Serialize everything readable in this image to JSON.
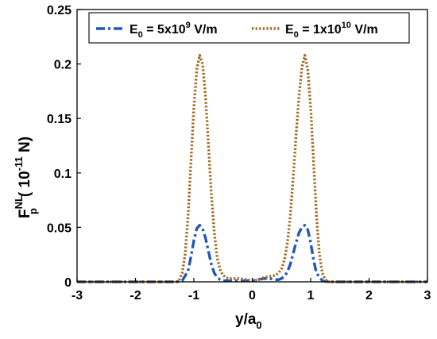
{
  "chart_data": {
    "type": "line",
    "xlabel": {
      "base": "y/a",
      "sub": "0"
    },
    "ylabel": {
      "base": "F",
      "sub": "p",
      "sup": "NL",
      "rest": "( 10",
      "exp": "-11",
      "unit": " N)"
    },
    "xlim": [
      -3,
      3
    ],
    "ylim": [
      0,
      0.25
    ],
    "xticks": [
      -3,
      -2,
      -1,
      0,
      1,
      2,
      3
    ],
    "yticks": [
      0,
      0.05,
      0.1,
      0.15,
      0.2,
      0.25
    ],
    "xtick_labels": [
      "-3",
      "-2",
      "-1",
      "0",
      "1",
      "2",
      "3"
    ],
    "ytick_labels": [
      "0",
      "0.05",
      "0.1",
      "0.15",
      "0.2",
      "0.25"
    ],
    "grid": false,
    "legend_position": "top",
    "series": [
      {
        "legend": {
          "base": "E",
          "sub": "0",
          "mid": " = 5x10",
          "sup": "9",
          "unit": " V/m"
        },
        "color": "#2356b8",
        "style": "dashdot",
        "x": [
          -3,
          -1.3,
          -1.2,
          -1.1,
          -1.05,
          -1.0,
          -0.95,
          -0.9,
          -0.85,
          -0.8,
          -0.75,
          -0.7,
          -0.65,
          -0.6,
          -0.55,
          -0.5,
          -0.45,
          -0.4,
          -0.3,
          -0.2,
          -0.1,
          0,
          0.1,
          0.2,
          0.3,
          0.4,
          0.45,
          0.5,
          0.55,
          0.6,
          0.65,
          0.7,
          0.75,
          0.8,
          0.85,
          0.9,
          0.95,
          1.0,
          1.05,
          1.1,
          1.2,
          1.3,
          3
        ],
        "y": [
          0,
          0,
          0.001,
          0.01,
          0.023,
          0.038,
          0.049,
          0.052,
          0.049,
          0.04,
          0.028,
          0.016,
          0.008,
          0.004,
          0.002,
          0.001,
          0.001,
          0.001,
          0.001,
          0.001,
          0.001,
          0.001,
          0.002,
          0.003,
          0.003,
          0.002,
          0.002,
          0.003,
          0.005,
          0.009,
          0.016,
          0.026,
          0.036,
          0.045,
          0.05,
          0.052,
          0.048,
          0.036,
          0.02,
          0.008,
          0.001,
          0,
          0
        ]
      },
      {
        "legend": {
          "base": "E",
          "sub": "0",
          "mid": " = 1x10",
          "sup": "10",
          "unit": " V/m"
        },
        "color": "#a0671d",
        "style": "dotted",
        "x": [
          -3,
          -1.3,
          -1.25,
          -1.2,
          -1.15,
          -1.1,
          -1.05,
          -1.0,
          -0.95,
          -0.9,
          -0.85,
          -0.8,
          -0.75,
          -0.7,
          -0.65,
          -0.6,
          -0.55,
          -0.5,
          -0.45,
          -0.4,
          -0.3,
          -0.2,
          -0.1,
          0,
          0.1,
          0.2,
          0.3,
          0.4,
          0.45,
          0.5,
          0.55,
          0.6,
          0.65,
          0.7,
          0.75,
          0.8,
          0.85,
          0.9,
          0.95,
          1.0,
          1.05,
          1.1,
          1.15,
          1.2,
          1.25,
          1.3,
          3
        ],
        "y": [
          0,
          0,
          0.002,
          0.008,
          0.025,
          0.06,
          0.11,
          0.16,
          0.195,
          0.208,
          0.2,
          0.17,
          0.125,
          0.08,
          0.045,
          0.022,
          0.011,
          0.006,
          0.004,
          0.003,
          0.003,
          0.003,
          0.002,
          0.001,
          0.002,
          0.004,
          0.005,
          0.006,
          0.008,
          0.012,
          0.02,
          0.035,
          0.06,
          0.095,
          0.135,
          0.17,
          0.197,
          0.208,
          0.195,
          0.16,
          0.11,
          0.06,
          0.025,
          0.008,
          0.002,
          0,
          0
        ]
      }
    ]
  }
}
